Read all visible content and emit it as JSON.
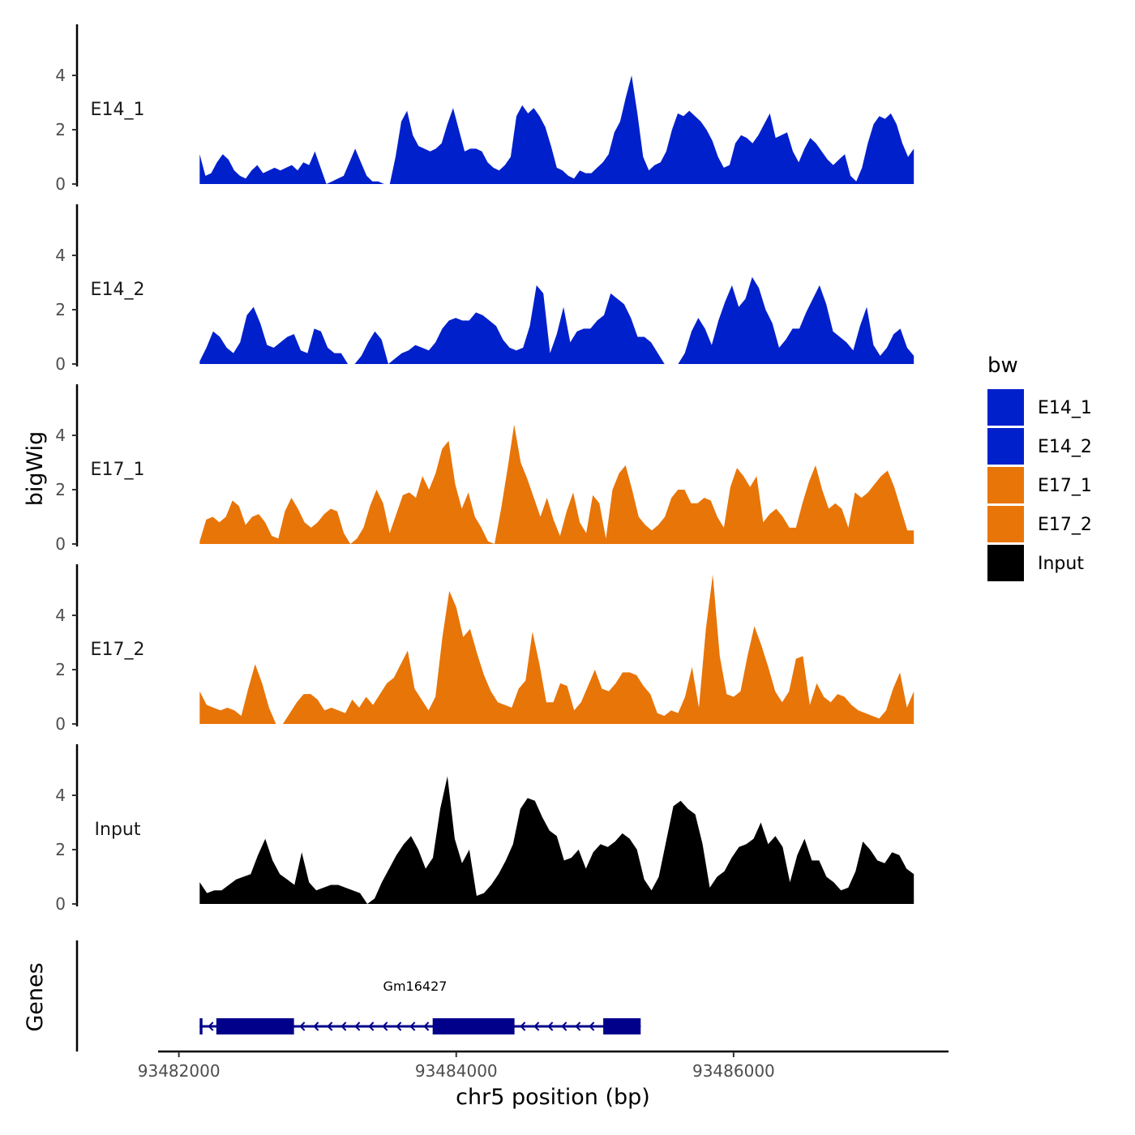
{
  "chart_data": {
    "type": "area",
    "ylabel": "bigWig",
    "xlabel": "chr5 position (bp)",
    "xlim": [
      93481850,
      93487550
    ],
    "data_x_range": [
      93482150,
      93487300
    ],
    "ylim": [
      0,
      5.9
    ],
    "yticks": [
      0,
      2,
      4
    ],
    "xticks": [
      93482000,
      93484000,
      93486000
    ],
    "legend": {
      "title": "bw",
      "position": "right",
      "entries": [
        {
          "name": "E14_1",
          "color": "#0020CC"
        },
        {
          "name": "E14_2",
          "color": "#0020CC"
        },
        {
          "name": "E17_1",
          "color": "#E87508"
        },
        {
          "name": "E17_2",
          "color": "#E87508"
        },
        {
          "name": "Input",
          "color": "#000000"
        }
      ]
    },
    "tracks": [
      {
        "name": "E14_1",
        "color": "#0020CC",
        "values": [
          1.1,
          0.3,
          0.4,
          0.8,
          1.1,
          0.9,
          0.5,
          0.3,
          0.2,
          0.5,
          0.7,
          0.4,
          0.5,
          0.6,
          0.5,
          0.6,
          0.7,
          0.5,
          0.8,
          0.7,
          1.2,
          0.6,
          0.0,
          0.1,
          0.2,
          0.3,
          0.8,
          1.3,
          0.8,
          0.3,
          0.1,
          0.1,
          0.0,
          0.0,
          1.0,
          2.3,
          2.7,
          1.8,
          1.4,
          1.3,
          1.2,
          1.3,
          1.5,
          2.2,
          2.8,
          2.0,
          1.2,
          1.3,
          1.3,
          1.2,
          0.8,
          0.6,
          0.5,
          0.7,
          1.0,
          2.5,
          2.9,
          2.6,
          2.8,
          2.5,
          2.1,
          1.4,
          0.6,
          0.5,
          0.3,
          0.2,
          0.5,
          0.4,
          0.4,
          0.6,
          0.8,
          1.1,
          1.9,
          2.3,
          3.2,
          4.0,
          2.6,
          1.0,
          0.5,
          0.7,
          0.8,
          1.2,
          2.0,
          2.6,
          2.5,
          2.7,
          2.5,
          2.3,
          2.0,
          1.6,
          1.0,
          0.6,
          0.7,
          1.5,
          1.8,
          1.7,
          1.5,
          1.8,
          2.2,
          2.6,
          1.7,
          1.8,
          1.9,
          1.2,
          0.8,
          1.3,
          1.7,
          1.5,
          1.2,
          0.9,
          0.7,
          0.9,
          1.1,
          0.3,
          0.1,
          0.6,
          1.5,
          2.2,
          2.5,
          2.4,
          2.6,
          2.2,
          1.5,
          1.0,
          1.3
        ]
      },
      {
        "name": "E14_2",
        "color": "#0020CC",
        "values": [
          0.1,
          0.6,
          1.2,
          1.0,
          0.6,
          0.4,
          0.8,
          1.8,
          2.1,
          1.5,
          0.7,
          0.6,
          0.8,
          1.0,
          1.1,
          0.5,
          0.4,
          1.3,
          1.2,
          0.6,
          0.4,
          0.4,
          0.0,
          0.0,
          0.3,
          0.8,
          1.2,
          0.9,
          0.0,
          0.2,
          0.4,
          0.5,
          0.7,
          0.6,
          0.5,
          0.8,
          1.3,
          1.6,
          1.7,
          1.6,
          1.6,
          1.9,
          1.8,
          1.6,
          1.4,
          0.9,
          0.6,
          0.5,
          0.6,
          1.4,
          2.9,
          2.6,
          0.4,
          1.1,
          2.1,
          0.8,
          1.2,
          1.3,
          1.3,
          1.6,
          1.8,
          2.6,
          2.4,
          2.2,
          1.7,
          1.0,
          1.0,
          0.8,
          0.4,
          0.0,
          0.0,
          0.0,
          0.4,
          1.2,
          1.7,
          1.3,
          0.7,
          1.6,
          2.3,
          2.9,
          2.1,
          2.4,
          3.2,
          2.8,
          2.0,
          1.5,
          0.6,
          0.9,
          1.3,
          1.3,
          1.9,
          2.4,
          2.9,
          2.2,
          1.2,
          1.0,
          0.8,
          0.5,
          1.4,
          2.1,
          0.7,
          0.3,
          0.6,
          1.1,
          1.3,
          0.6,
          0.3
        ]
      },
      {
        "name": "E17_1",
        "color": "#E87508",
        "values": [
          0.1,
          0.9,
          1.0,
          0.8,
          1.0,
          1.6,
          1.4,
          0.7,
          1.0,
          1.1,
          0.8,
          0.3,
          0.2,
          1.2,
          1.7,
          1.3,
          0.8,
          0.6,
          0.8,
          1.1,
          1.3,
          1.2,
          0.4,
          0.0,
          0.2,
          0.6,
          1.4,
          2.0,
          1.5,
          0.4,
          1.1,
          1.8,
          1.9,
          1.7,
          2.5,
          2.0,
          2.6,
          3.5,
          3.8,
          2.2,
          1.3,
          1.9,
          1.0,
          0.6,
          0.1,
          0.0,
          1.3,
          2.8,
          4.4,
          3.0,
          2.4,
          1.7,
          1.0,
          1.7,
          0.9,
          0.3,
          1.2,
          1.9,
          0.8,
          0.4,
          1.8,
          1.5,
          0.2,
          2.0,
          2.6,
          2.9,
          2.0,
          1.0,
          0.7,
          0.5,
          0.7,
          1.0,
          1.7,
          2.0,
          2.0,
          1.5,
          1.5,
          1.7,
          1.6,
          1.0,
          0.6,
          2.1,
          2.8,
          2.5,
          2.1,
          2.5,
          0.8,
          1.1,
          1.3,
          1.0,
          0.6,
          0.6,
          1.5,
          2.3,
          2.9,
          2.0,
          1.3,
          1.5,
          1.3,
          0.6,
          1.9,
          1.7,
          1.9,
          2.2,
          2.5,
          2.7,
          2.1,
          1.3,
          0.5,
          0.5
        ]
      },
      {
        "name": "E17_2",
        "color": "#E87508",
        "values": [
          1.2,
          0.7,
          0.6,
          0.5,
          0.6,
          0.5,
          0.3,
          1.3,
          2.2,
          1.5,
          0.6,
          0.0,
          0.0,
          0.4,
          0.8,
          1.1,
          1.1,
          0.9,
          0.5,
          0.6,
          0.5,
          0.4,
          0.9,
          0.6,
          1.0,
          0.7,
          1.1,
          1.5,
          1.7,
          2.2,
          2.7,
          1.3,
          0.9,
          0.5,
          1.0,
          3.2,
          4.9,
          4.3,
          3.2,
          3.5,
          2.6,
          1.8,
          1.2,
          0.8,
          0.7,
          0.6,
          1.3,
          1.6,
          3.4,
          2.2,
          0.8,
          0.8,
          1.5,
          1.4,
          0.5,
          0.8,
          1.4,
          2.0,
          1.3,
          1.2,
          1.5,
          1.9,
          1.9,
          1.8,
          1.4,
          1.1,
          0.4,
          0.3,
          0.5,
          0.4,
          1.0,
          2.1,
          0.6,
          3.5,
          5.5,
          2.5,
          1.1,
          1.0,
          1.2,
          2.5,
          3.6,
          2.9,
          2.1,
          1.2,
          0.8,
          1.2,
          2.4,
          2.5,
          0.7,
          1.5,
          1.0,
          0.8,
          1.1,
          1.0,
          0.7,
          0.5,
          0.4,
          0.3,
          0.2,
          0.5,
          1.3,
          1.9,
          0.6,
          1.2
        ]
      },
      {
        "name": "Input",
        "color": "#000000",
        "values": [
          0.8,
          0.4,
          0.5,
          0.5,
          0.7,
          0.9,
          1.0,
          1.1,
          1.8,
          2.4,
          1.6,
          1.1,
          0.9,
          0.7,
          1.9,
          0.8,
          0.5,
          0.6,
          0.7,
          0.7,
          0.6,
          0.5,
          0.4,
          0.0,
          0.2,
          0.8,
          1.3,
          1.8,
          2.2,
          2.5,
          2.0,
          1.3,
          1.7,
          3.5,
          4.7,
          2.4,
          1.5,
          2.0,
          0.3,
          0.4,
          0.7,
          1.1,
          1.6,
          2.2,
          3.5,
          3.9,
          3.8,
          3.2,
          2.7,
          2.5,
          1.6,
          1.7,
          2.0,
          1.3,
          1.9,
          2.2,
          2.1,
          2.3,
          2.6,
          2.4,
          2.0,
          0.9,
          0.5,
          1.0,
          2.3,
          3.6,
          3.8,
          3.5,
          3.3,
          2.2,
          0.6,
          1.0,
          1.2,
          1.7,
          2.1,
          2.2,
          2.4,
          3.0,
          2.2,
          2.5,
          2.1,
          0.8,
          1.8,
          2.4,
          1.6,
          1.6,
          1.0,
          0.8,
          0.5,
          0.6,
          1.2,
          2.3,
          2.0,
          1.6,
          1.5,
          1.9,
          1.8,
          1.3,
          1.1
        ]
      }
    ],
    "genes_track": {
      "label": "Genes",
      "gene_name": "Gm16427",
      "strand": "-",
      "span": [
        93482150,
        93485330
      ],
      "exons": [
        [
          93482150,
          93482170
        ],
        [
          93482270,
          93482830
        ],
        [
          93483830,
          93484420
        ],
        [
          93485060,
          93485330
        ]
      ],
      "color": "#00008B"
    }
  }
}
